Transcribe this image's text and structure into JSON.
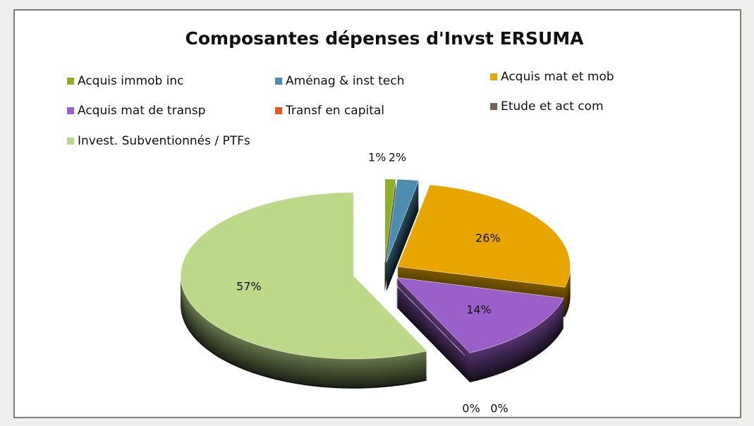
{
  "chart_data": {
    "type": "pie",
    "title": "Composantes dépenses d'Invst  ERSUMA",
    "categories": [
      "Acquis immob inc",
      "Aménag & inst tech",
      "Acquis  mat et mob",
      "Acquis mat de transp",
      "Transf en capital",
      "Etude et act com",
      "Invest. Subventionnés /  PTFs"
    ],
    "values": [
      1,
      2,
      26,
      14,
      0,
      0,
      57
    ],
    "value_labels": [
      "1%",
      "2%",
      "26%",
      "14%",
      "0%",
      "0%",
      "57%"
    ],
    "colors": [
      "#8fae2c",
      "#4f8db0",
      "#e8a500",
      "#9a5fc9",
      "#e8541f",
      "#7a6553",
      "#bcd98a"
    ]
  }
}
